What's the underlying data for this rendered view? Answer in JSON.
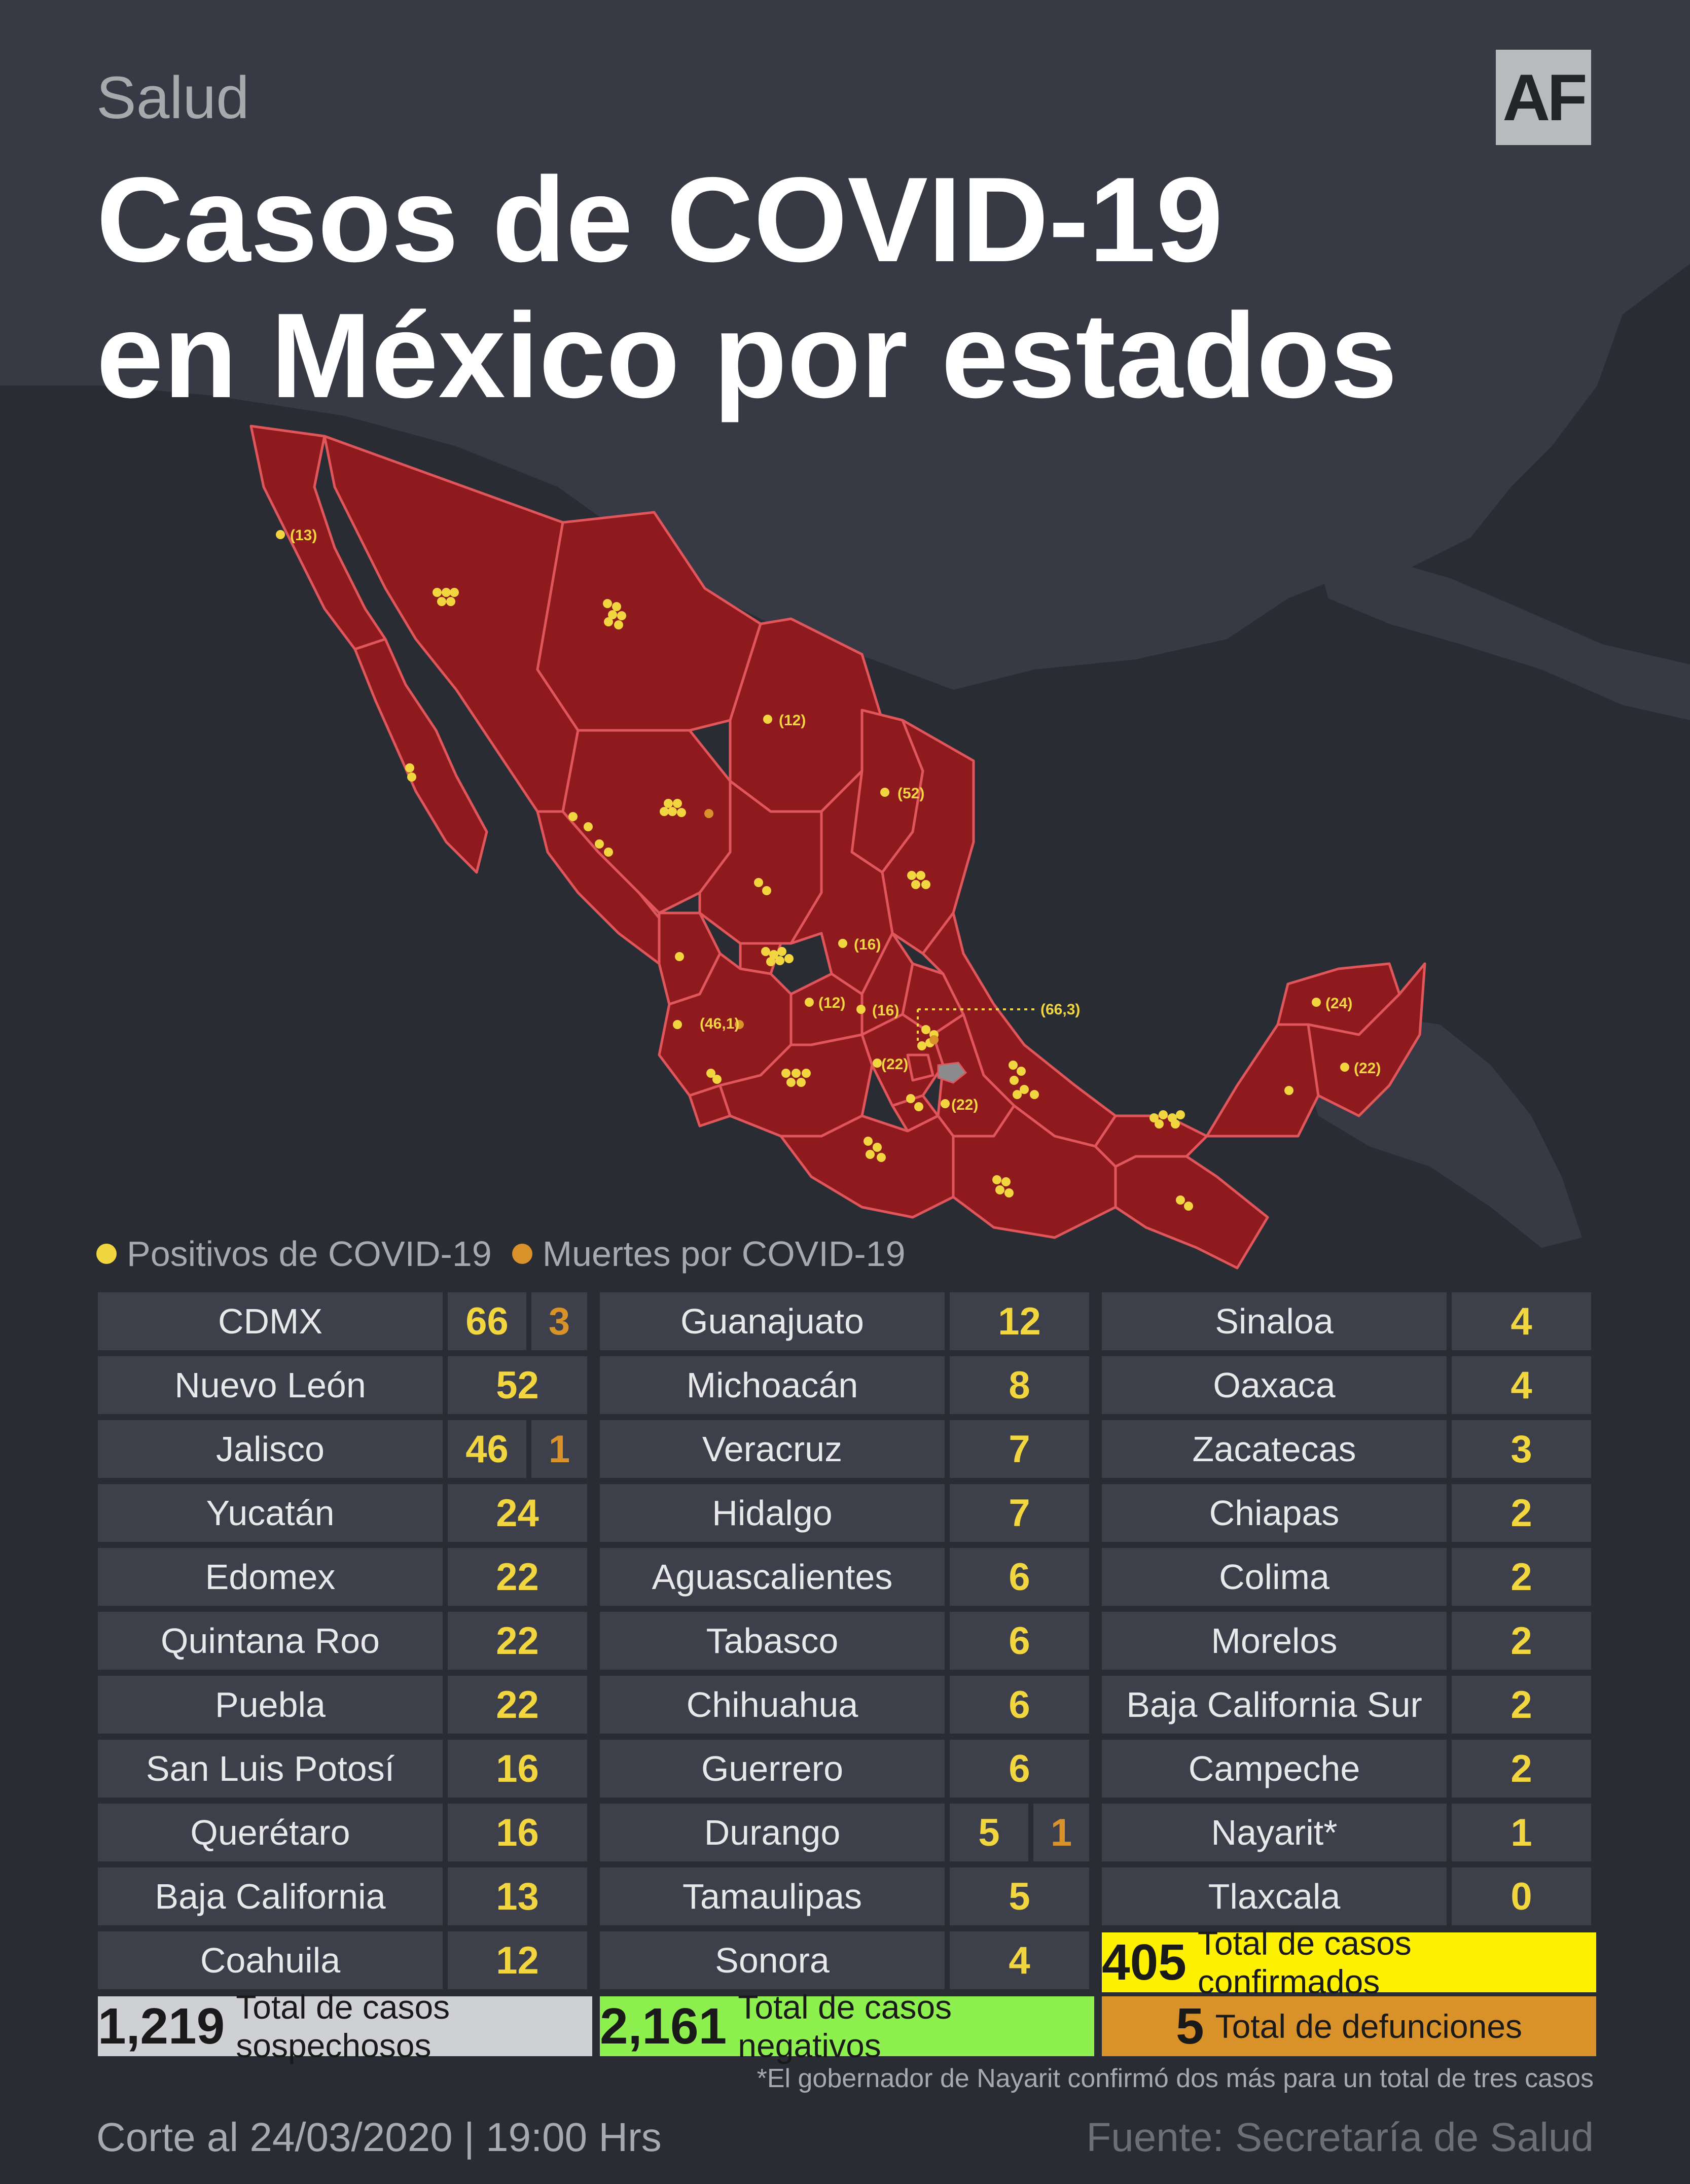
{
  "header": {
    "section": "Salud",
    "logo": "AF",
    "title_line1": "Casos de COVID-19",
    "title_line2": "en México por estados"
  },
  "colors": {
    "background": "#2a2c34",
    "land": "#373945",
    "map_fill": "#8e1a1e",
    "border": "#e0565a",
    "positive_dot": "#f2d640",
    "death_dot": "#d9922a",
    "cell_bg": "#3d3f4a",
    "suspects_bar": "#cfd0d3",
    "negatives_bar": "#8ef04e",
    "confirmed_bar": "#fff200",
    "deaths_bar": "#d9922a"
  },
  "map_labels": [
    "(13)",
    "(12)",
    "(52)",
    "(16)",
    "(12)",
    "(16)",
    "(66,3)",
    "(46,1)",
    "(22)",
    "(22)",
    "(24)",
    "(22)"
  ],
  "legend": {
    "positive": "Positivos de COVID-19",
    "deaths": "Muertes por COVID-19"
  },
  "table_columns": [
    [
      {
        "state": "CDMX",
        "cases": "66",
        "deaths": "3"
      },
      {
        "state": "Nuevo León",
        "cases": "52"
      },
      {
        "state": "Jalisco",
        "cases": "46",
        "deaths": "1"
      },
      {
        "state": "Yucatán",
        "cases": "24"
      },
      {
        "state": "Edomex",
        "cases": "22"
      },
      {
        "state": "Quintana Roo",
        "cases": "22"
      },
      {
        "state": "Puebla",
        "cases": "22"
      },
      {
        "state": "San Luis Potosí",
        "cases": "16"
      },
      {
        "state": "Querétaro",
        "cases": "16"
      },
      {
        "state": "Baja California",
        "cases": "13"
      },
      {
        "state": "Coahuila",
        "cases": "12"
      }
    ],
    [
      {
        "state": "Guanajuato",
        "cases": "12"
      },
      {
        "state": "Michoacán",
        "cases": "8"
      },
      {
        "state": "Veracruz",
        "cases": "7"
      },
      {
        "state": "Hidalgo",
        "cases": "7"
      },
      {
        "state": "Aguascalientes",
        "cases": "6"
      },
      {
        "state": "Tabasco",
        "cases": "6"
      },
      {
        "state": "Chihuahua",
        "cases": "6"
      },
      {
        "state": "Guerrero",
        "cases": "6"
      },
      {
        "state": "Durango",
        "cases": "5",
        "deaths": "1"
      },
      {
        "state": "Tamaulipas",
        "cases": "5"
      },
      {
        "state": "Sonora",
        "cases": "4"
      }
    ],
    [
      {
        "state": "Sinaloa",
        "cases": "4"
      },
      {
        "state": "Oaxaca",
        "cases": "4"
      },
      {
        "state": "Zacatecas",
        "cases": "3"
      },
      {
        "state": "Chiapas",
        "cases": "2"
      },
      {
        "state": "Colima",
        "cases": "2"
      },
      {
        "state": "Morelos",
        "cases": "2"
      },
      {
        "state": "Baja California Sur",
        "cases": "2"
      },
      {
        "state": "Campeche",
        "cases": "2"
      },
      {
        "state": "Nayarit*",
        "cases": "1"
      },
      {
        "state": "Tlaxcala",
        "cases": "0"
      }
    ]
  ],
  "totals": {
    "suspects_num": "1,219",
    "suspects_label": "Total de casos sospechosos",
    "negatives_num": "2,161",
    "negatives_label": "Total de casos negativos",
    "confirmed_num": "405",
    "confirmed_label": "Total de casos confirmados",
    "deaths_num": "5",
    "deaths_label": "Total de defunciones"
  },
  "note": "*El gobernador de Nayarit confirmó dos más para un total de tres casos",
  "footer": {
    "cutoff": "Corte al 24/03/2020 | 19:00 Hrs",
    "source": "Fuente: Secretaría de Salud"
  }
}
